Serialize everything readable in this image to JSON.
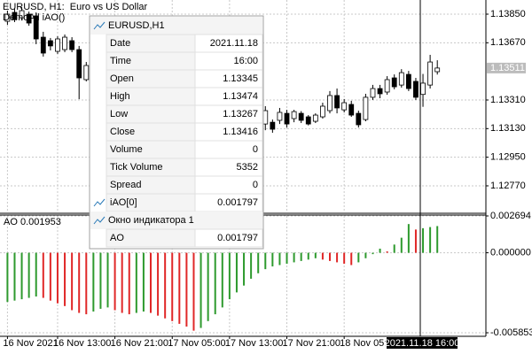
{
  "chart_data": [
    {
      "type": "candlestick",
      "title": "EURUSD, H1:  Euro vs US Dollar",
      "subtitle": "DemoAll iAO()",
      "categories": [
        "16 Nov 2021",
        null,
        null,
        null,
        null,
        null,
        null,
        "16 Nov 13:00",
        null,
        null,
        null,
        null,
        null,
        null,
        null,
        "16 Nov 21:00",
        null,
        null,
        null,
        null,
        null,
        null,
        null,
        "17 Nov 05:00",
        null,
        null,
        null,
        null,
        null,
        null,
        null,
        "17 Nov 13:00",
        null,
        null,
        null,
        null,
        null,
        null,
        null,
        "17 Nov 21:00",
        null,
        null,
        null,
        null,
        null,
        null,
        null,
        "18 Nov 05:00",
        null,
        null,
        null,
        null,
        null,
        null,
        null,
        null,
        null,
        null,
        null,
        null,
        null
      ],
      "open": [
        1.13805,
        1.13861,
        1.13827,
        1.1385,
        1.13839,
        1.13705,
        1.13683,
        1.13616,
        1.13627,
        1.13683,
        1.13627,
        1.13438,
        null,
        null,
        null,
        null,
        null,
        null,
        null,
        null,
        null,
        null,
        null,
        null,
        null,
        null,
        null,
        null,
        null,
        null,
        null,
        null,
        null,
        null,
        null,
        null,
        1.13159,
        1.1317,
        1.13182,
        1.13226,
        1.13193,
        1.13226,
        1.13204,
        1.13176,
        1.13204,
        1.13243,
        1.13338,
        1.13248,
        1.13282,
        1.13226,
        1.13187,
        1.13327,
        1.13382,
        1.1336,
        1.13449,
        1.13404,
        1.13471,
        1.13427,
        1.13345,
        1.13404,
        1.13488
      ],
      "high": [
        1.13872,
        1.13883,
        1.13894,
        1.13866,
        1.13861,
        1.13739,
        1.137,
        1.13711,
        1.13722,
        1.13705,
        1.1365,
        1.13549,
        null,
        null,
        null,
        null,
        null,
        null,
        null,
        null,
        null,
        null,
        null,
        null,
        null,
        null,
        null,
        null,
        null,
        null,
        null,
        null,
        null,
        null,
        null,
        null,
        1.13271,
        1.13187,
        1.1326,
        1.13248,
        1.13248,
        1.1324,
        1.13215,
        1.13226,
        1.13293,
        1.13366,
        1.13382,
        1.13316,
        1.13305,
        1.13243,
        1.13349,
        1.13405,
        1.13405,
        1.1346,
        1.13471,
        1.13504,
        1.13493,
        1.13449,
        1.13474,
        1.13594,
        1.1356
      ],
      "low": [
        1.13783,
        1.138,
        1.1381,
        1.13777,
        1.13661,
        1.13583,
        1.13622,
        1.136,
        1.13611,
        1.13611,
        1.13315,
        1.13427,
        null,
        null,
        null,
        null,
        null,
        null,
        null,
        null,
        null,
        null,
        null,
        null,
        null,
        null,
        null,
        null,
        null,
        null,
        null,
        null,
        null,
        null,
        null,
        null,
        1.1312,
        1.13104,
        1.13159,
        1.13137,
        1.1317,
        1.13165,
        1.1315,
        1.13165,
        1.13193,
        1.13226,
        1.13226,
        1.13232,
        1.13204,
        1.13137,
        1.13176,
        1.1331,
        1.13321,
        1.13343,
        1.13377,
        1.13388,
        1.13366,
        1.1331,
        1.13267,
        1.13382,
        1.1347
      ],
      "close": [
        1.1385,
        1.13816,
        1.13872,
        1.13794,
        1.13694,
        1.13605,
        1.1365,
        1.13694,
        1.13705,
        1.13627,
        1.13449,
        1.13527,
        null,
        null,
        null,
        null,
        null,
        null,
        null,
        null,
        null,
        null,
        null,
        null,
        null,
        null,
        null,
        null,
        null,
        null,
        null,
        null,
        null,
        null,
        null,
        null,
        1.13243,
        1.13126,
        1.13232,
        1.13159,
        1.13237,
        1.13182,
        1.13159,
        1.13215,
        1.13271,
        1.13338,
        1.1326,
        1.13293,
        1.13215,
        1.13154,
        1.13327,
        1.13382,
        1.13349,
        1.13438,
        1.13393,
        1.13482,
        1.13382,
        1.13327,
        1.13416,
        1.13549,
        1.13511
      ],
      "up_color": "#ffffff",
      "down_color": "#000000",
      "outline_color": "#000000",
      "ylim": [
        1.12614,
        1.13939
      ],
      "yticks": [
        {
          "value": 1.1385,
          "label": "1.13850"
        },
        {
          "value": 1.1367,
          "label": "1.13670"
        },
        {
          "value": 1.1331,
          "label": "1.13310"
        },
        {
          "value": 1.1313,
          "label": "1.13130"
        },
        {
          "value": 1.1295,
          "label": "1.12950"
        },
        {
          "value": 1.1277,
          "label": "1.12770"
        }
      ],
      "current_price": {
        "value": 1.13511,
        "label": "1.13511"
      },
      "crosshair_label": "2021.11.18 16:00",
      "grid": true
    },
    {
      "type": "histogram",
      "title": "AO 0.001953",
      "values": [
        -0.0036,
        -0.0035,
        -0.0034,
        -0.0033,
        -0.0032,
        -0.0033,
        -0.0035,
        -0.0037,
        -0.0039,
        -0.0042,
        -0.0044,
        -0.0045,
        -0.0043,
        -0.0041,
        -0.004,
        -0.0042,
        -0.0044,
        -0.0045,
        -0.0044,
        -0.0043,
        -0.0044,
        -0.0046,
        -0.0048,
        -0.005,
        -0.0052,
        -0.0054,
        -0.0057,
        -0.0055,
        -0.005,
        -0.0045,
        -0.004,
        -0.0034,
        -0.0029,
        -0.0024,
        -0.0019,
        -0.0015,
        -0.0012,
        -0.001,
        -0.0009,
        -0.0008,
        -0.0007,
        -0.0006,
        -0.0005,
        -0.0004,
        -0.0005,
        -0.0006,
        -0.0007,
        -0.0008,
        -0.0009,
        -0.0007,
        -0.0004,
        -0.0001,
        0.0003,
        0.0001,
        0.0006,
        0.0011,
        0.0021,
        0.0017,
        0.001797,
        0.00188,
        0.001953
      ],
      "up_color": "#2e9a2e",
      "down_color": "#e02828",
      "ylim": [
        -0.005853,
        0.002694
      ],
      "yticks": [
        0.002694,
        {
          "value": 0,
          "label": "0.000000"
        },
        -0.005853
      ]
    }
  ],
  "data_window": {
    "title": "EURUSD,H1",
    "rows": [
      [
        "Date",
        "2021.11.18"
      ],
      [
        "Time",
        "16:00"
      ],
      [
        "Open",
        1.13345
      ],
      [
        "High",
        1.13474
      ],
      [
        "Low",
        1.13267
      ],
      [
        "Close",
        1.13416
      ],
      [
        "Volume",
        0
      ],
      [
        "Tick Volume",
        5352
      ],
      [
        "Spread",
        0
      ],
      [
        "iAO[0]",
        0.001797
      ]
    ],
    "subwindow": "Окно индикатора 1",
    "sub_rows": [
      [
        "AO",
        0.001797
      ]
    ]
  }
}
